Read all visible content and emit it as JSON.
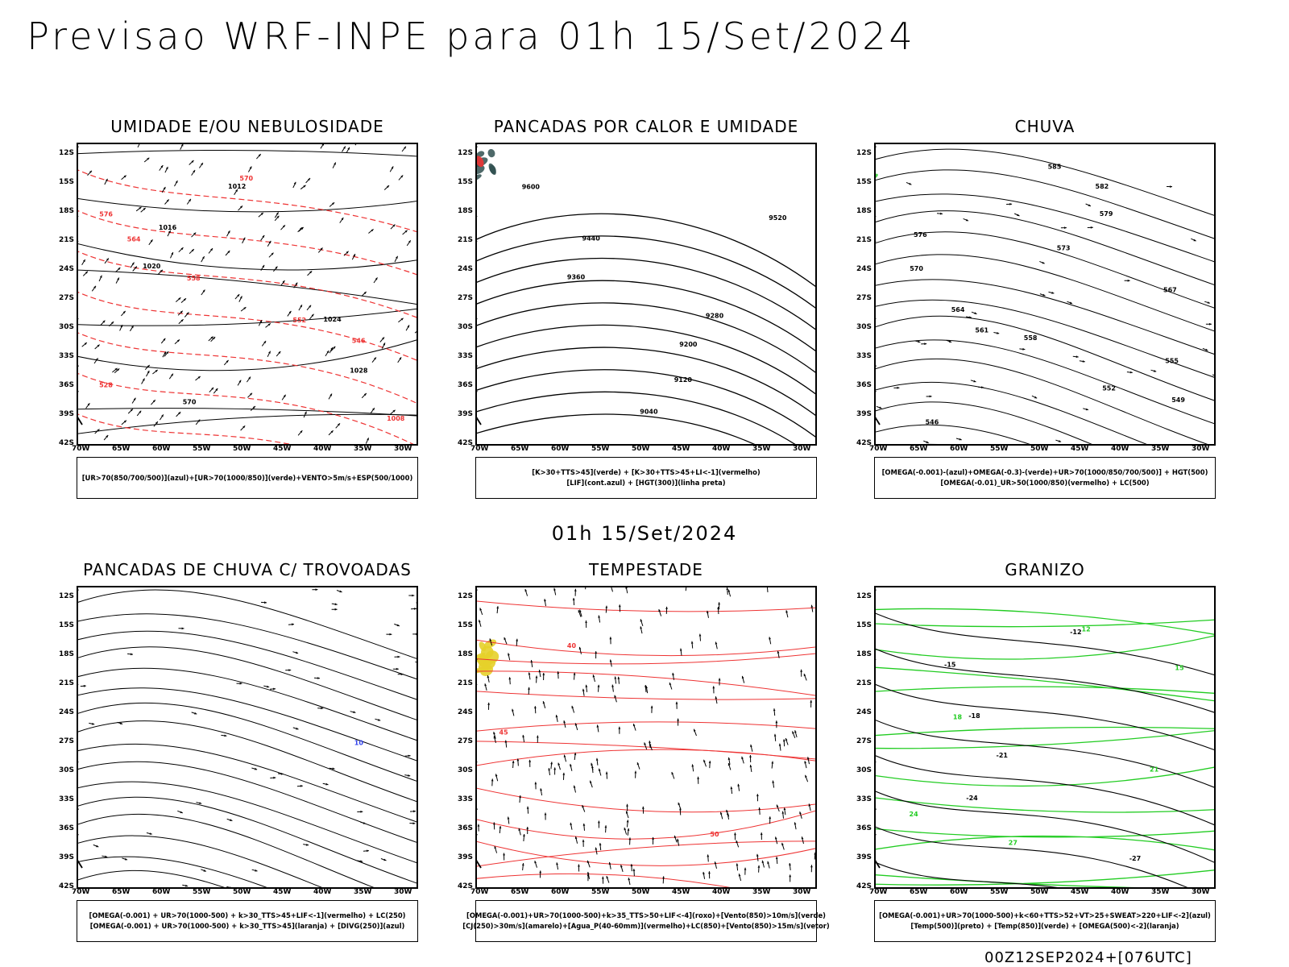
{
  "header": {
    "main_title": "Previsao WRF-INPE  para 01h 15/Set/2024",
    "mid_title": "01h 15/Set/2024",
    "footer_stamp": "00Z12SEP2024+[076UTC]"
  },
  "axes": {
    "lat_labels": [
      "12S",
      "15S",
      "18S",
      "21S",
      "24S",
      "27S",
      "30S",
      "33S",
      "36S",
      "39S",
      "42S"
    ],
    "lon_labels": [
      "70W",
      "65W",
      "60W",
      "55W",
      "50W",
      "45W",
      "40W",
      "35W",
      "30W"
    ]
  },
  "colors": {
    "blue": "#3344ee",
    "lightblue": "#aab0f0",
    "green": "#22cc22",
    "red": "#ee3333",
    "orange": "#ee7722",
    "yellow": "#e6d02a",
    "darkteal": "#2f4f4f",
    "black": "#000000"
  },
  "panels": [
    {
      "id": "umidade",
      "title": "UMIDADE E/OU NEBULOSIDADE",
      "legend": [
        "[UR>70(850/700/500)](azul)+[UR>70(1000/850)](verde)+VENTO>5m/s+ESP(500/1000)"
      ],
      "contour_labels": [
        "1012",
        "1016",
        "1020",
        "1024",
        "1028",
        "570",
        "576",
        "564",
        "558",
        "552",
        "546",
        "528",
        "1008"
      ]
    },
    {
      "id": "pancadas-calor",
      "title": "PANCADAS POR CALOR E UMIDADE",
      "legend": [
        "[K>30+TTS>45](verde) + [K>30+TTS>45+LI<-1](vermelho)",
        "[LIF](cont.azul) + [HGT(300)](linha preta)"
      ],
      "contour_labels": [
        "9600",
        "9520",
        "9440",
        "9360",
        "9280",
        "9200",
        "9120",
        "9040"
      ]
    },
    {
      "id": "chuva",
      "title": "CHUVA",
      "legend": [
        "[OMEGA(-0.001)-(azul)+OMEGA(-0.3)-(verde)+UR>70(1000/850/700/500)] + HGT(500)",
        "[OMEGA(-0.01)_UR>50(1000/850)(vermelho) + LC(500)"
      ],
      "contour_labels": [
        "585",
        "582",
        "579",
        "576",
        "573",
        "570",
        "567",
        "564",
        "561",
        "558",
        "555",
        "552",
        "549",
        "546"
      ]
    },
    {
      "id": "trovoadas",
      "title": "PANCADAS DE CHUVA C/ TROVOADAS",
      "legend": [
        "[OMEGA(-0.001) + UR>70(1000-500) + k>30_TTS>45+LIF<-1](vermelho) + LC(250)",
        "[OMEGA(-0.001) + UR>70(1000-500) + k>30_TTS>45](laranja) + [DIVG(250)](azul)"
      ],
      "contour_labels": [
        "10"
      ]
    },
    {
      "id": "tempestade",
      "title": "TEMPESTADE",
      "legend": [
        "[OMEGA(-0.001)+UR>70(1000-500)+k>35_TTS>50+LIF<-4](roxo)+[Vento(850)>10m/s](verde)",
        "[CJ(250)>30m/s](amarelo)+[Agua_P(40-60mm)](vermelho)+LC(850)+[Vento(850)>15m/s](vetor)"
      ],
      "contour_labels": [
        "40",
        "45",
        "50"
      ]
    },
    {
      "id": "granizo",
      "title": "GRANIZO",
      "legend": [
        "[OMEGA(-0.001)+UR>70(1000-500)+k<60+TTS>52+VT>25+SWEAT>220+LIF<-2](azul)",
        "[Temp(500)](preto) + [Temp(850)](verde) + [OMEGA(500)<-2](laranja)"
      ],
      "contour_labels": [
        "-12",
        "-15",
        "-18",
        "-21",
        "-24",
        "-27",
        "12",
        "15",
        "18",
        "21",
        "24",
        "27"
      ]
    }
  ]
}
